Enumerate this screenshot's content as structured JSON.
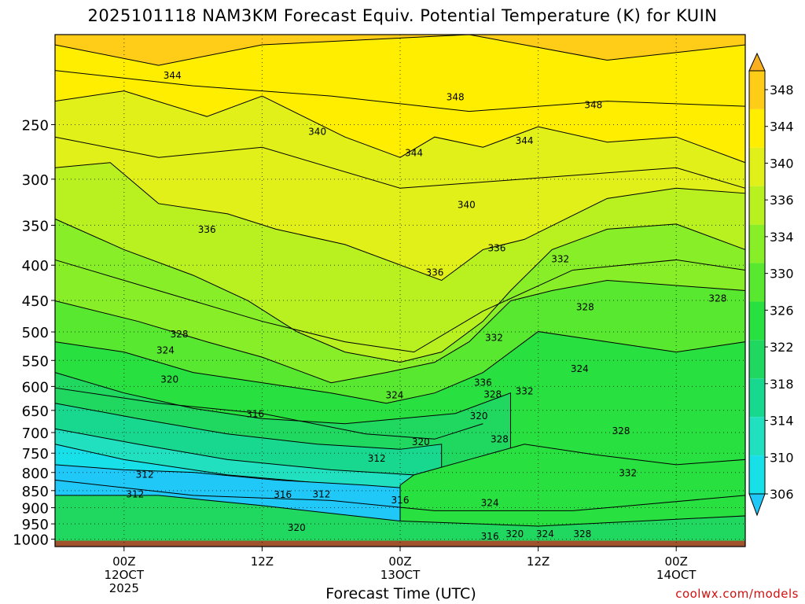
{
  "title": "2025101118 NAM3KM Forecast Equiv. Potential Temperature (K) for KUIN",
  "xlabel": "Forecast Time (UTC)",
  "credit": "coolwx.com/models",
  "chart_data": {
    "type": "contour",
    "title": "2025101118 NAM3KM Forecast Equiv. Potential Temperature (K) for KUIN",
    "xlabel": "Forecast Time (UTC)",
    "ylabel": "",
    "x_domain_hours": [
      -5,
      45
    ],
    "x_ticks": [
      {
        "hour": 0,
        "lines": [
          "00Z",
          "12OCT",
          "2025"
        ]
      },
      {
        "hour": 10,
        "lines": [
          "12Z"
        ]
      },
      {
        "hour": 20,
        "lines": [
          "00Z",
          "13OCT"
        ]
      },
      {
        "hour": 30,
        "lines": [
          "12Z"
        ]
      },
      {
        "hour": 40,
        "lines": [
          "00Z",
          "14OCT"
        ]
      }
    ],
    "y_scale": "log",
    "y_range": [
      1025,
      185
    ],
    "y_ticks": [
      250,
      300,
      350,
      400,
      450,
      500,
      550,
      600,
      650,
      700,
      750,
      800,
      850,
      900,
      950,
      1000
    ],
    "grid": true,
    "surface_pressure": 1005,
    "colorbar": {
      "levels": [
        306,
        310,
        314,
        318,
        322,
        326,
        330,
        334,
        336,
        340,
        344,
        348
      ],
      "colors": [
        "#20c8f8",
        "#18e0e8",
        "#20e0c0",
        "#18d890",
        "#20d860",
        "#28e040",
        "#58e830",
        "#88ee28",
        "#b8f020",
        "#e0f018",
        "#ffee00",
        "#ffcc18",
        "#f8b020"
      ]
    },
    "contour_labels": [
      {
        "value": "344",
        "x": 3.5,
        "p": 212
      },
      {
        "value": "348",
        "x": 24,
        "p": 228
      },
      {
        "value": "348",
        "x": 34,
        "p": 234
      },
      {
        "value": "340",
        "x": 14,
        "p": 256
      },
      {
        "value": "344",
        "x": 21,
        "p": 275
      },
      {
        "value": "344",
        "x": 29,
        "p": 264
      },
      {
        "value": "340",
        "x": 24.8,
        "p": 327
      },
      {
        "value": "336",
        "x": 6,
        "p": 355
      },
      {
        "value": "336",
        "x": 27,
        "p": 378
      },
      {
        "value": "336",
        "x": 22.5,
        "p": 410
      },
      {
        "value": "332",
        "x": 31.6,
        "p": 392
      },
      {
        "value": "328",
        "x": 33.4,
        "p": 460
      },
      {
        "value": "328",
        "x": 43,
        "p": 447
      },
      {
        "value": "328",
        "x": 4,
        "p": 504
      },
      {
        "value": "332",
        "x": 26.8,
        "p": 510
      },
      {
        "value": "324",
        "x": 3,
        "p": 532
      },
      {
        "value": "324",
        "x": 33,
        "p": 566
      },
      {
        "value": "320",
        "x": 3.3,
        "p": 586
      },
      {
        "value": "336",
        "x": 26,
        "p": 592
      },
      {
        "value": "332",
        "x": 29,
        "p": 610
      },
      {
        "value": "328",
        "x": 26.7,
        "p": 616
      },
      {
        "value": "324",
        "x": 19.6,
        "p": 618
      },
      {
        "value": "316",
        "x": 9.5,
        "p": 658
      },
      {
        "value": "320",
        "x": 25.7,
        "p": 662
      },
      {
        "value": "328",
        "x": 36,
        "p": 696
      },
      {
        "value": "320",
        "x": 21.5,
        "p": 722
      },
      {
        "value": "328",
        "x": 27.2,
        "p": 716
      },
      {
        "value": "312",
        "x": 18.3,
        "p": 763
      },
      {
        "value": "312",
        "x": 1.5,
        "p": 806
      },
      {
        "value": "332",
        "x": 36.5,
        "p": 802
      },
      {
        "value": "312",
        "x": 0.8,
        "p": 860
      },
      {
        "value": "316",
        "x": 11.5,
        "p": 862
      },
      {
        "value": "312",
        "x": 14.3,
        "p": 860
      },
      {
        "value": "316",
        "x": 20,
        "p": 878
      },
      {
        "value": "324",
        "x": 26.5,
        "p": 886
      },
      {
        "value": "320",
        "x": 12.5,
        "p": 962
      },
      {
        "value": "316",
        "x": 26.5,
        "p": 990
      },
      {
        "value": "320",
        "x": 28.3,
        "p": 983
      },
      {
        "value": "324",
        "x": 30.5,
        "p": 983
      },
      {
        "value": "328",
        "x": 33.2,
        "p": 983
      }
    ]
  }
}
